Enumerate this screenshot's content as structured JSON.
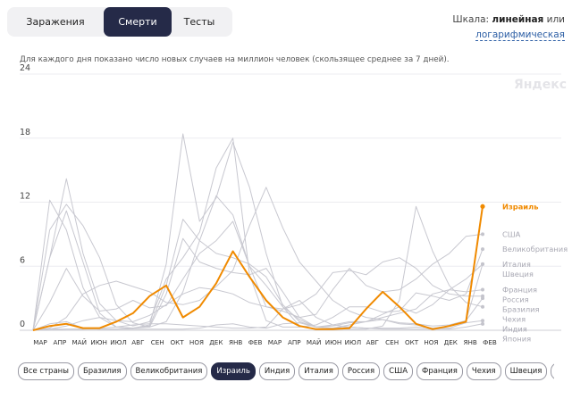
{
  "tabs": [
    {
      "label": "Заражения",
      "active": false
    },
    {
      "label": "Смерти",
      "active": true
    },
    {
      "label": "Тесты",
      "active": false
    }
  ],
  "scale": {
    "prefix": "Шкала:",
    "linear": "линейная",
    "or": "или",
    "log_link": "логарифмическая"
  },
  "caption": "Для каждого дня показано число новых случаев на миллион человек (скользящее среднее за 7 дней).",
  "brand": "Яндекс",
  "colors": {
    "accent": "#f08a00",
    "muted": "#c8c8d0",
    "dark": "#252a48"
  },
  "chart_data": {
    "type": "line",
    "ylim": [
      0,
      24
    ],
    "y_ticks": [
      "0",
      "6",
      "12",
      "18",
      "24"
    ],
    "x_ticks": [
      "МАР",
      "АПР",
      "МАЙ",
      "ИЮН",
      "ИЮЛ",
      "АВГ",
      "СЕН",
      "ОКТ",
      "НОЯ",
      "ДЕК",
      "ЯНВ",
      "ФЕВ",
      "МАР",
      "АПР",
      "МАЙ",
      "ИЮН",
      "ИЮЛ",
      "АВГ",
      "СЕН",
      "ОКТ",
      "НОЯ",
      "ДЕК",
      "ЯНВ",
      "ФЕВ"
    ],
    "highlight": "Израиль",
    "series": [
      {
        "name": "Израиль",
        "highlight": true,
        "values": [
          0,
          0.4,
          0.6,
          0.2,
          0.2,
          0.8,
          1.6,
          3.2,
          4.2,
          1.2,
          2.2,
          4.4,
          7.4,
          5.0,
          2.8,
          1.2,
          0.4,
          0.1,
          0.1,
          0.2,
          2.0,
          3.6,
          2.2,
          0.6,
          0.1,
          0.4,
          0.8,
          11.6
        ]
      },
      {
        "name": "США",
        "values": [
          0,
          2.6,
          5.8,
          3.2,
          1.8,
          2.0,
          2.8,
          2.1,
          2.3,
          4.8,
          7.2,
          8.4,
          10.2,
          6.0,
          2.2,
          1.8,
          1.2,
          1.5,
          3.8,
          5.8,
          4.2,
          3.6,
          3.8,
          4.8,
          6.2,
          7.2,
          8.8,
          9.0
        ]
      },
      {
        "name": "Великобритания",
        "values": [
          0,
          6.8,
          14.2,
          7.2,
          2.5,
          0.9,
          0.4,
          0.8,
          4.8,
          6.8,
          9.2,
          15.2,
          18.0,
          5.2,
          0.9,
          0.3,
          0.3,
          0.5,
          1.2,
          2.2,
          2.2,
          1.7,
          1.8,
          3.5,
          3.2,
          2.8,
          3.4,
          7.6
        ]
      },
      {
        "name": "Италия",
        "values": [
          0,
          12.2,
          9.4,
          4.0,
          1.2,
          0.3,
          0.2,
          0.4,
          4.2,
          10.4,
          8.4,
          7.2,
          6.8,
          6.2,
          5.0,
          2.4,
          0.8,
          0.3,
          0.5,
          0.8,
          0.8,
          1.5,
          2.2,
          1.6,
          2.4,
          3.8,
          4.8,
          6.2
        ]
      },
      {
        "name": "Швеция",
        "values": [
          0,
          9.4,
          11.8,
          9.8,
          6.8,
          2.4,
          0.7,
          0.3,
          0.8,
          3.6,
          8.4,
          12.6,
          10.8,
          6.0,
          4.2,
          2.2,
          1.0,
          0.3,
          0.4,
          0.7,
          0.8,
          1.0,
          0.6,
          0.5,
          0.2,
          0.4,
          0.9,
          6.2
        ]
      },
      {
        "name": "Россия",
        "values": [
          0,
          0.1,
          0.4,
          0.9,
          1.2,
          0.9,
          0.8,
          1.4,
          2.4,
          3.4,
          4.0,
          3.8,
          3.4,
          2.6,
          2.2,
          2.0,
          2.4,
          3.4,
          5.4,
          5.6,
          5.2,
          6.4,
          6.8,
          5.8,
          4.2,
          3.4,
          3.2,
          3.2
        ]
      },
      {
        "name": "Франция",
        "values": [
          0,
          6.8,
          11.2,
          6.4,
          1.6,
          0.3,
          0.2,
          0.3,
          3.4,
          8.6,
          6.4,
          5.8,
          5.4,
          5.2,
          5.8,
          3.6,
          1.2,
          0.3,
          0.2,
          0.5,
          0.8,
          1.2,
          1.6,
          2.0,
          3.4,
          3.8,
          3.6,
          3.8
        ]
      },
      {
        "name": "Бразилия",
        "values": [
          0,
          0.2,
          1.2,
          3.4,
          4.2,
          4.6,
          4.1,
          3.6,
          2.6,
          2.4,
          2.8,
          4.1,
          5.6,
          9.8,
          13.4,
          9.6,
          6.4,
          4.6,
          2.8,
          1.8,
          1.2,
          1.0,
          0.7,
          0.6,
          0.4,
          0.5,
          0.9,
          3.0
        ]
      },
      {
        "name": "Чехия",
        "values": [
          0,
          0.6,
          0.8,
          0.2,
          0.1,
          0.1,
          0.2,
          0.5,
          6.2,
          18.4,
          10.2,
          12.4,
          17.6,
          13.4,
          7.2,
          2.2,
          0.4,
          0.1,
          0.1,
          0.1,
          0.1,
          0.4,
          2.8,
          11.6,
          7.4,
          4.2,
          2.6,
          2.2
        ]
      },
      {
        "name": "Индия",
        "values": [
          0,
          0.1,
          0.1,
          0.1,
          0.2,
          0.3,
          0.5,
          0.6,
          0.6,
          0.5,
          0.4,
          0.3,
          0.2,
          0.2,
          0.3,
          2.0,
          2.8,
          1.2,
          0.5,
          0.3,
          0.2,
          0.2,
          0.2,
          0.3,
          0.2,
          0.2,
          0.7,
          0.9
        ]
      },
      {
        "name": "Япония",
        "values": [
          0,
          0,
          0.1,
          0.1,
          0.1,
          0.1,
          0.1,
          0.1,
          0.1,
          0.1,
          0.2,
          0.5,
          0.6,
          0.3,
          0.2,
          0.6,
          0.7,
          0.3,
          0.2,
          0.3,
          0.2,
          0.1,
          0.1,
          0.1,
          0.1,
          0.1,
          0.3,
          0.6
        ]
      }
    ]
  },
  "chips": [
    {
      "label": "Все страны",
      "active": false
    },
    {
      "label": "Бразилия",
      "active": false
    },
    {
      "label": "Великобритания",
      "active": false
    },
    {
      "label": "Израиль",
      "active": true
    },
    {
      "label": "Индия",
      "active": false
    },
    {
      "label": "Италия",
      "active": false
    },
    {
      "label": "Россия",
      "active": false
    },
    {
      "label": "США",
      "active": false
    },
    {
      "label": "Франция",
      "active": false
    },
    {
      "label": "Чехия",
      "active": false
    },
    {
      "label": "Швеция",
      "active": false
    },
    {
      "label": "Япония",
      "active": false
    }
  ]
}
